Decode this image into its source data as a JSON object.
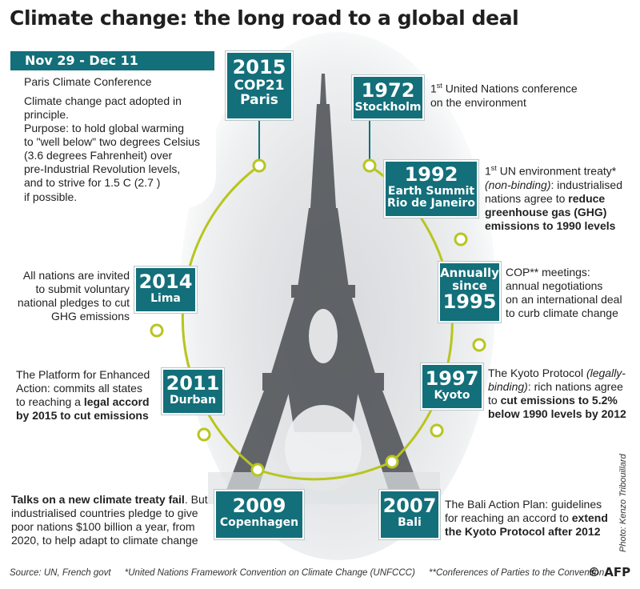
{
  "title": "Climate change: the long road to a global deal",
  "colors": {
    "teal": "#136f7a",
    "ring": "#b8c51d",
    "dot_fill": "#ffffff"
  },
  "paris": {
    "date": "Nov 29 - Dec 11",
    "heading": "Paris Climate Conference",
    "body": [
      "Climate change pact adopted in",
      "principle.",
      "Purpose: to hold global warming",
      "to \"well below\" two degrees Celsius",
      "(3.6 degrees Fahrenheit) over",
      "pre-Industrial Revolution levels,",
      "and to strive for 1.5 C (2.7 )",
      "if possible."
    ]
  },
  "milestones": {
    "cop21": {
      "year": "2015",
      "line2": "COP21",
      "place": "Paris"
    },
    "stockholm": {
      "year": "1972",
      "place": "Stockholm",
      "note": {
        "sup_pre": "1",
        "sup": "st",
        "l1": " United Nations conference",
        "l2": "on the environment"
      }
    },
    "rio": {
      "year": "1992",
      "l2": "Earth Summit",
      "place": "Rio de Janeiro",
      "note": {
        "sup_pre": "1",
        "sup": "st",
        "l1a": " UN environment treaty*",
        "l2i": "(non-binding)",
        "l2": ": industrialised",
        "l3": "nations agree to ",
        "l3b": "reduce",
        "l4b": "greenhouse gas (GHG)",
        "l5b": "emissions to 1990 levels"
      }
    },
    "annual": {
      "l1": "Annually",
      "l2": "since",
      "year": "1995",
      "note": [
        "COP** meetings:",
        "annual negotiations",
        "on an international deal",
        "to curb climate change"
      ]
    },
    "kyoto": {
      "year": "1997",
      "place": "Kyoto",
      "note": {
        "l1": "The Kyoto Protocol ",
        "l1i": "(legally-",
        "l2i": "binding)",
        "l2": ": rich nations agree",
        "l3": "to ",
        "l3b": "cut emissions to 5.2%",
        "l4b": "below 1990 levels by 2012"
      }
    },
    "bali": {
      "year": "2007",
      "place": "Bali",
      "note": {
        "l1": "The Bali Action Plan: guidelines",
        "l2": "for reaching an accord to ",
        "l2b": "extend",
        "l3b": "the Kyoto Protocol after 2012"
      }
    },
    "copenhagen": {
      "year": "2009",
      "place": "Copenhagen",
      "note": {
        "l1b": "Talks on a new climate treaty fail",
        "l1": ". But",
        "l2": "industrialised countries pledge to give",
        "l3": "poor nations $100 billion a year, from",
        "l4": "2020, to help adapt to climate change"
      }
    },
    "durban": {
      "year": "2011",
      "place": "Durban",
      "note": {
        "l1": "The Platform for Enhanced",
        "l2": "Action: commits all states",
        "l3": "to reaching a ",
        "l3b": "legal accord",
        "l4b": "by 2015 to cut emissions"
      }
    },
    "lima": {
      "year": "2014",
      "place": "Lima",
      "note": [
        "All nations are invited",
        "to submit voluntary",
        "national pledges to cut",
        "GHG emissions"
      ]
    }
  },
  "footer": {
    "source": "Source: UN, French govt",
    "fn1": "*United Nations Framework Convention on Climate Change (UNFCCC)",
    "fn2": "**Conferences of Parties to the Convention",
    "credit": "Photo: Kenzo Tribouillard",
    "logo": "© AFP"
  }
}
